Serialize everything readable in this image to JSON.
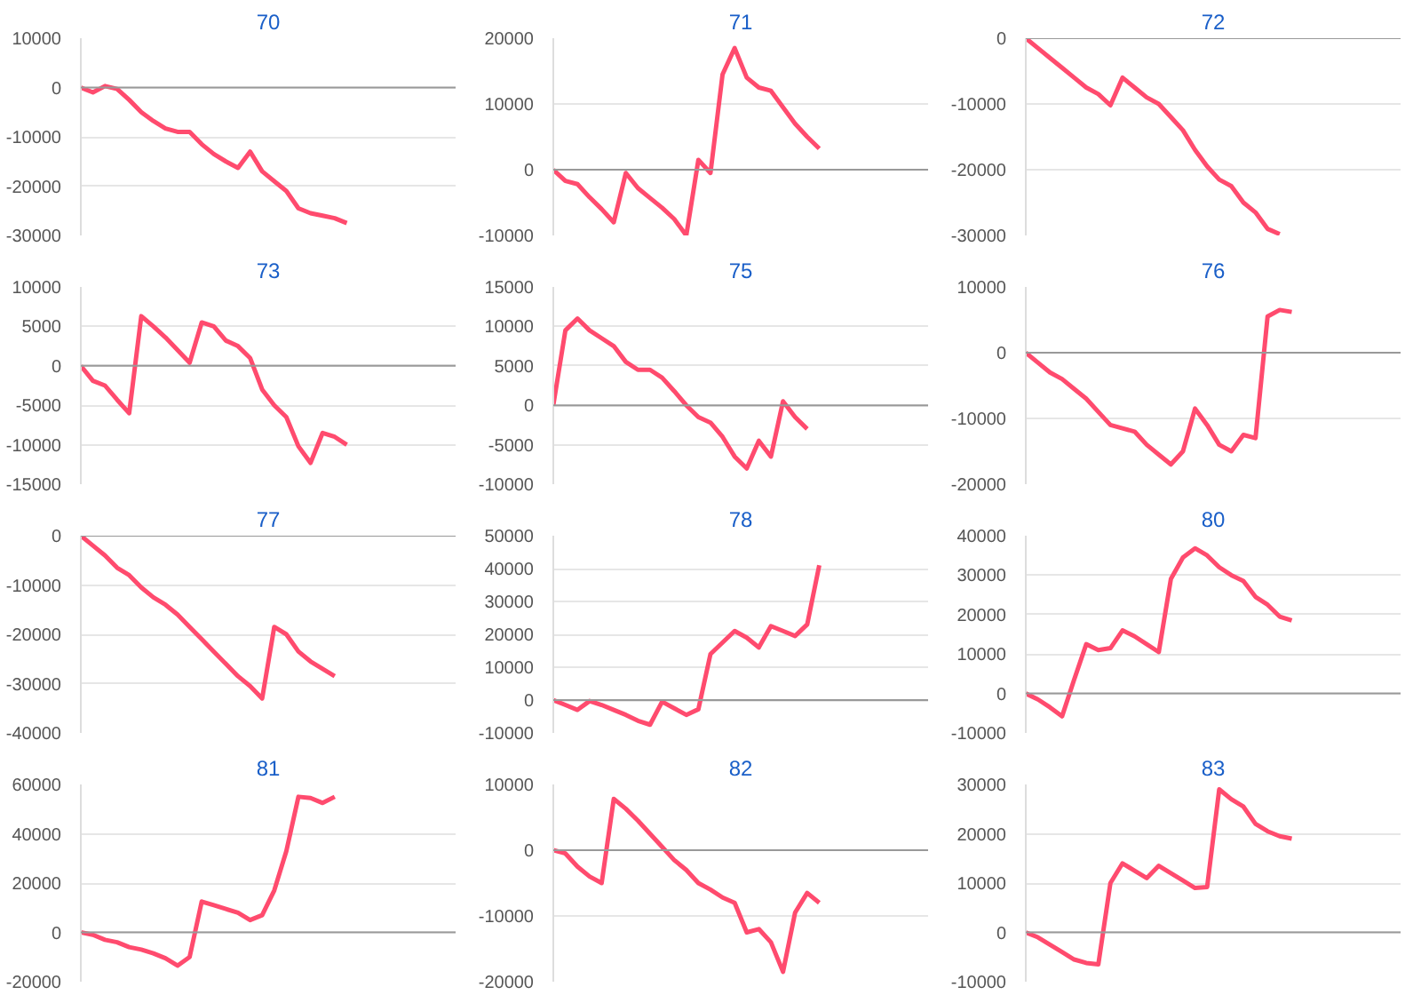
{
  "chart_data": [
    {
      "type": "line",
      "title": "70",
      "color": "#ff4b6e",
      "grid": "y",
      "tick_labels": "y",
      "ylim": [
        -30000,
        10000
      ],
      "yticks": [
        -30000,
        -20000,
        -10000,
        0,
        10000
      ],
      "ref_lines": [
        {
          "axis": "y",
          "value": 0,
          "color": "#999999"
        }
      ],
      "categories": [
        null,
        null,
        null,
        null,
        null,
        null,
        null,
        null,
        null,
        null,
        null,
        null,
        null,
        null,
        null,
        null,
        null,
        null,
        null,
        null,
        null,
        null,
        null,
        null,
        null,
        null,
        null,
        null,
        null,
        null,
        null,
        null
      ],
      "values": [
        0,
        -1000,
        300,
        -300,
        -2500,
        -5000,
        -6800,
        -8300,
        -9000,
        -9000,
        -11500,
        -13500,
        -15000,
        -16300,
        -13000,
        -17000,
        -19000,
        -21000,
        -24500,
        -25500,
        -26000,
        -26500,
        -27500,
        null,
        null,
        null,
        null,
        null,
        null,
        null,
        null,
        null
      ]
    },
    {
      "type": "line",
      "title": "71",
      "color": "#ff4b6e",
      "grid": "y",
      "tick_labels": "y",
      "ylim": [
        -10000,
        20000
      ],
      "yticks": [
        -10000,
        0,
        10000,
        20000
      ],
      "ref_lines": [
        {
          "axis": "y",
          "value": 0,
          "color": "#999999"
        }
      ],
      "categories": [
        null,
        null,
        null,
        null,
        null,
        null,
        null,
        null,
        null,
        null,
        null,
        null,
        null,
        null,
        null,
        null,
        null,
        null,
        null,
        null,
        null,
        null,
        null,
        null,
        null,
        null,
        null,
        null,
        null,
        null,
        null,
        null
      ],
      "values": [
        0,
        -1700,
        -2200,
        -4200,
        -6000,
        -8000,
        -500,
        -2800,
        -4300,
        -5800,
        -7500,
        -10000,
        1500,
        -500,
        14500,
        18500,
        14000,
        12500,
        12000,
        9500,
        7000,
        5000,
        3200,
        null,
        null,
        null,
        null,
        null,
        null,
        null,
        null,
        null
      ]
    },
    {
      "type": "line",
      "title": "72",
      "color": "#ff4b6e",
      "grid": "y",
      "tick_labels": "y",
      "ylim": [
        -30000,
        0
      ],
      "yticks": [
        -30000,
        -20000,
        -10000,
        0
      ],
      "ref_lines": [
        {
          "axis": "y",
          "value": 0,
          "color": "#999999"
        }
      ],
      "categories": [
        null,
        null,
        null,
        null,
        null,
        null,
        null,
        null,
        null,
        null,
        null,
        null,
        null,
        null,
        null,
        null,
        null,
        null,
        null,
        null,
        null,
        null,
        null,
        null,
        null,
        null,
        null,
        null,
        null,
        null,
        null,
        null
      ],
      "values": [
        0,
        -1500,
        -3000,
        -4500,
        -6000,
        -7500,
        -8500,
        -10200,
        -6000,
        -7500,
        -9000,
        -10000,
        -12000,
        -14000,
        -17000,
        -19500,
        -21500,
        -22500,
        -25000,
        -26500,
        -29000,
        -29800,
        null,
        null,
        null,
        null,
        null,
        null,
        null,
        null,
        null,
        null
      ]
    },
    {
      "type": "line",
      "title": "73",
      "color": "#ff4b6e",
      "grid": "y",
      "tick_labels": "y",
      "ylim": [
        -15000,
        10000
      ],
      "yticks": [
        -15000,
        -10000,
        -5000,
        0,
        5000,
        10000
      ],
      "ref_lines": [
        {
          "axis": "y",
          "value": 0,
          "color": "#999999"
        }
      ],
      "categories": [
        null,
        null,
        null,
        null,
        null,
        null,
        null,
        null,
        null,
        null,
        null,
        null,
        null,
        null,
        null,
        null,
        null,
        null,
        null,
        null,
        null,
        null,
        null,
        null,
        null,
        null,
        null,
        null,
        null,
        null,
        null,
        null
      ],
      "values": [
        0,
        -1900,
        -2500,
        -4300,
        -6000,
        6300,
        5000,
        3600,
        2000,
        400,
        5500,
        5000,
        3200,
        2500,
        1000,
        -3000,
        -5000,
        -6500,
        -10200,
        -12300,
        -8500,
        -9000,
        -10000,
        null,
        null,
        null,
        null,
        null,
        null,
        null,
        null,
        null
      ]
    },
    {
      "type": "line",
      "title": "75",
      "color": "#ff4b6e",
      "grid": "y",
      "tick_labels": "y",
      "ylim": [
        -10000,
        15000
      ],
      "yticks": [
        -10000,
        -5000,
        0,
        5000,
        10000,
        15000
      ],
      "ref_lines": [
        {
          "axis": "y",
          "value": 0,
          "color": "#999999"
        }
      ],
      "categories": [
        null,
        null,
        null,
        null,
        null,
        null,
        null,
        null,
        null,
        null,
        null,
        null,
        null,
        null,
        null,
        null,
        null,
        null,
        null,
        null,
        null,
        null,
        null,
        null,
        null,
        null,
        null,
        null,
        null,
        null,
        null,
        null
      ],
      "values": [
        0,
        9500,
        11000,
        9500,
        8500,
        7500,
        5500,
        4500,
        4500,
        3500,
        1800,
        0,
        -1500,
        -2200,
        -4000,
        -6500,
        -8000,
        -4500,
        -6500,
        500,
        -1500,
        -3000,
        null,
        null,
        null,
        null,
        null,
        null,
        null,
        null,
        null,
        null
      ]
    },
    {
      "type": "line",
      "title": "76",
      "color": "#ff4b6e",
      "grid": "y",
      "tick_labels": "y",
      "ylim": [
        -20000,
        10000
      ],
      "yticks": [
        -20000,
        -10000,
        0,
        10000
      ],
      "ref_lines": [
        {
          "axis": "y",
          "value": 0,
          "color": "#999999"
        }
      ],
      "categories": [
        null,
        null,
        null,
        null,
        null,
        null,
        null,
        null,
        null,
        null,
        null,
        null,
        null,
        null,
        null,
        null,
        null,
        null,
        null,
        null,
        null,
        null,
        null,
        null,
        null,
        null,
        null,
        null,
        null,
        null,
        null,
        null
      ],
      "values": [
        0,
        -1500,
        -3000,
        -4000,
        -5500,
        -7000,
        -9000,
        -11000,
        -11500,
        -12000,
        -14000,
        -15500,
        -17000,
        -15000,
        -8500,
        -11000,
        -14000,
        -15000,
        -12500,
        -13000,
        5500,
        6500,
        6200,
        null,
        null,
        null,
        null,
        null,
        null,
        null,
        null,
        null
      ]
    },
    {
      "type": "line",
      "title": "77",
      "color": "#ff4b6e",
      "grid": "y",
      "tick_labels": "y",
      "ylim": [
        -40000,
        0
      ],
      "yticks": [
        -40000,
        -30000,
        -20000,
        -10000,
        0
      ],
      "ref_lines": [
        {
          "axis": "y",
          "value": 0,
          "color": "#999999"
        }
      ],
      "categories": [
        null,
        null,
        null,
        null,
        null,
        null,
        null,
        null,
        null,
        null,
        null,
        null,
        null,
        null,
        null,
        null,
        null,
        null,
        null,
        null,
        null,
        null,
        null,
        null,
        null,
        null,
        null,
        null,
        null,
        null,
        null,
        null
      ],
      "values": [
        0,
        -2000,
        -4000,
        -6500,
        -8000,
        -10500,
        -12500,
        -14000,
        -16000,
        -18500,
        -21000,
        -23500,
        -26000,
        -28500,
        -30500,
        -33000,
        -18500,
        -20000,
        -23500,
        -25500,
        -27000,
        -28500,
        null,
        null,
        null,
        null,
        null,
        null,
        null,
        null,
        null,
        null
      ]
    },
    {
      "type": "line",
      "title": "78",
      "color": "#ff4b6e",
      "grid": "y",
      "tick_labels": "y",
      "ylim": [
        -10000,
        50000
      ],
      "yticks": [
        -10000,
        0,
        10000,
        20000,
        30000,
        40000,
        50000
      ],
      "ref_lines": [
        {
          "axis": "y",
          "value": 0,
          "color": "#999999"
        }
      ],
      "categories": [
        null,
        null,
        null,
        null,
        null,
        null,
        null,
        null,
        null,
        null,
        null,
        null,
        null,
        null,
        null,
        null,
        null,
        null,
        null,
        null,
        null,
        null,
        null,
        null,
        null,
        null,
        null,
        null,
        null,
        null,
        null,
        null
      ],
      "values": [
        0,
        -1500,
        -3000,
        -300,
        -1500,
        -3000,
        -4500,
        -6300,
        -7500,
        -500,
        -2500,
        -4500,
        -2800,
        14000,
        17500,
        21000,
        19000,
        16000,
        22500,
        21000,
        19500,
        23000,
        41000,
        null,
        null,
        null,
        null,
        null,
        null,
        null,
        null,
        null
      ]
    },
    {
      "type": "line",
      "title": "80",
      "color": "#ff4b6e",
      "grid": "y",
      "tick_labels": "y",
      "ylim": [
        -10000,
        40000
      ],
      "yticks": [
        -10000,
        0,
        10000,
        20000,
        30000,
        40000
      ],
      "ref_lines": [
        {
          "axis": "y",
          "value": 0,
          "color": "#999999"
        }
      ],
      "categories": [
        null,
        null,
        null,
        null,
        null,
        null,
        null,
        null,
        null,
        null,
        null,
        null,
        null,
        null,
        null,
        null,
        null,
        null,
        null,
        null,
        null,
        null,
        null,
        null,
        null,
        null,
        null,
        null,
        null,
        null,
        null,
        null
      ],
      "values": [
        0,
        -1500,
        -3500,
        -5800,
        3500,
        12500,
        11000,
        11500,
        16000,
        14500,
        12500,
        10500,
        29000,
        34500,
        36800,
        35000,
        32000,
        30000,
        28500,
        24500,
        22500,
        19500,
        18500,
        null,
        null,
        null,
        null,
        null,
        null,
        null,
        null,
        null
      ]
    },
    {
      "type": "line",
      "title": "81",
      "color": "#ff4b6e",
      "grid": "y",
      "tick_labels": "y",
      "ylim": [
        -20000,
        60000
      ],
      "yticks": [
        -20000,
        0,
        20000,
        40000,
        60000
      ],
      "ref_lines": [
        {
          "axis": "y",
          "value": 0,
          "color": "#999999"
        }
      ],
      "categories": [
        null,
        null,
        null,
        null,
        null,
        null,
        null,
        null,
        null,
        null,
        null,
        null,
        null,
        null,
        null,
        null,
        null,
        null,
        null,
        null,
        null,
        null,
        null,
        null,
        null,
        null,
        null,
        null,
        null,
        null,
        null,
        null
      ],
      "values": [
        0,
        -1000,
        -3000,
        -4000,
        -6000,
        -7000,
        -8500,
        -10500,
        -13500,
        -10000,
        12500,
        11000,
        9500,
        8000,
        5000,
        7000,
        17000,
        33000,
        55000,
        54500,
        52500,
        55000,
        null,
        null,
        null,
        null,
        null,
        null,
        null,
        null,
        null,
        null
      ]
    },
    {
      "type": "line",
      "title": "82",
      "color": "#ff4b6e",
      "grid": "y",
      "tick_labels": "y",
      "ylim": [
        -20000,
        10000
      ],
      "yticks": [
        -20000,
        -10000,
        0,
        10000
      ],
      "ref_lines": [
        {
          "axis": "y",
          "value": 0,
          "color": "#999999"
        }
      ],
      "categories": [
        null,
        null,
        null,
        null,
        null,
        null,
        null,
        null,
        null,
        null,
        null,
        null,
        null,
        null,
        null,
        null,
        null,
        null,
        null,
        null,
        null,
        null,
        null,
        null,
        null,
        null,
        null,
        null,
        null,
        null,
        null,
        null
      ],
      "values": [
        0,
        -500,
        -2500,
        -4000,
        -5000,
        7800,
        6300,
        4500,
        2500,
        500,
        -1500,
        -3000,
        -5000,
        -6000,
        -7200,
        -8000,
        -12500,
        -12000,
        -14000,
        -18500,
        -9500,
        -6500,
        -8000,
        null,
        null,
        null,
        null,
        null,
        null,
        null,
        null,
        null
      ]
    },
    {
      "type": "line",
      "title": "83",
      "color": "#ff4b6e",
      "grid": "y",
      "tick_labels": "y",
      "ylim": [
        -10000,
        30000
      ],
      "yticks": [
        -10000,
        0,
        10000,
        20000,
        30000
      ],
      "ref_lines": [
        {
          "axis": "y",
          "value": 0,
          "color": "#999999"
        }
      ],
      "categories": [
        null,
        null,
        null,
        null,
        null,
        null,
        null,
        null,
        null,
        null,
        null,
        null,
        null,
        null,
        null,
        null,
        null,
        null,
        null,
        null,
        null,
        null,
        null,
        null,
        null,
        null,
        null,
        null,
        null,
        null,
        null,
        null
      ],
      "values": [
        0,
        -1000,
        -2500,
        -4000,
        -5500,
        -6200,
        -6500,
        10000,
        14000,
        12500,
        11000,
        13500,
        12000,
        10500,
        9000,
        9200,
        29000,
        27000,
        25500,
        22000,
        20500,
        19500,
        19000,
        null,
        null,
        null,
        null,
        null,
        null,
        null,
        null,
        null
      ]
    }
  ]
}
